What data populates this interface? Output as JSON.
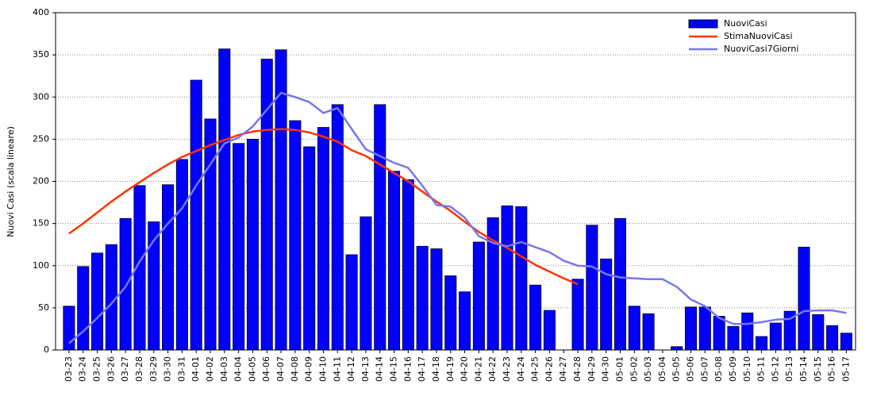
{
  "chart_data": {
    "type": "bar",
    "y_label": "Nuovi Casi (scala lineare)",
    "categories": [
      "03-23",
      "03-24",
      "03-25",
      "03-26",
      "03-27",
      "03-28",
      "03-29",
      "03-30",
      "03-31",
      "04-01",
      "04-02",
      "04-03",
      "04-04",
      "04-05",
      "04-06",
      "04-07",
      "04-08",
      "04-09",
      "04-10",
      "04-11",
      "04-12",
      "04-13",
      "04-14",
      "04-15",
      "04-16",
      "04-17",
      "04-18",
      "04-19",
      "04-20",
      "04-21",
      "04-22",
      "04-23",
      "04-24",
      "04-25",
      "04-26",
      "04-27",
      "04-28",
      "04-29",
      "04-30",
      "05-01",
      "05-02",
      "05-03",
      "05-04",
      "05-05",
      "05-06",
      "05-07",
      "05-08",
      "05-09",
      "05-10",
      "05-11",
      "05-12",
      "05-13",
      "05-14",
      "05-15",
      "05-16",
      "05-17"
    ],
    "series": [
      {
        "name": "NuoviCasi",
        "type": "bar",
        "color": "#0000ff",
        "values": [
          52,
          99,
          115,
          125,
          156,
          195,
          152,
          196,
          226,
          320,
          274,
          357,
          245,
          250,
          345,
          356,
          272,
          241,
          264,
          291,
          113,
          158,
          291,
          212,
          202,
          123,
          120,
          88,
          69,
          128,
          157,
          171,
          170,
          77,
          47,
          0,
          84,
          148,
          108,
          156,
          52,
          43,
          0,
          4,
          51,
          51,
          40,
          28,
          44,
          16,
          32,
          46,
          122,
          42,
          29,
          20
        ]
      },
      {
        "name": "StimaNuoviCasi",
        "type": "line",
        "color": "#ff3300",
        "values": [
          138,
          150,
          163,
          176,
          188,
          199,
          210,
          220,
          229,
          236,
          243,
          249,
          255,
          259,
          261,
          262,
          261,
          258,
          253,
          247,
          237,
          230,
          220,
          210,
          200,
          188,
          176,
          165,
          152,
          140,
          130,
          121,
          111,
          101,
          93,
          85,
          78,
          null,
          null,
          null,
          null,
          null,
          null,
          null,
          null,
          null,
          null,
          null,
          null,
          null,
          null,
          null,
          null,
          null,
          null,
          null
        ]
      },
      {
        "name": "NuoviCasi7Giorni",
        "type": "line",
        "color": "#7777ee",
        "values": [
          8,
          22,
          38,
          55,
          75,
          105,
          130,
          150,
          168,
          195,
          220,
          245,
          252,
          265,
          285,
          305,
          300,
          294,
          281,
          287,
          262,
          238,
          230,
          222,
          216,
          195,
          172,
          170,
          157,
          135,
          127,
          123,
          128,
          122,
          116,
          106,
          100,
          99,
          90,
          86,
          85,
          84,
          84,
          75,
          60,
          52,
          38,
          31,
          31,
          33,
          36,
          37,
          46,
          47,
          47,
          44
        ]
      }
    ],
    "ylim": [
      0,
      400
    ],
    "yticks": [
      0,
      50,
      100,
      150,
      200,
      250,
      300,
      350,
      400
    ],
    "grid": true,
    "legend": "top-right"
  }
}
